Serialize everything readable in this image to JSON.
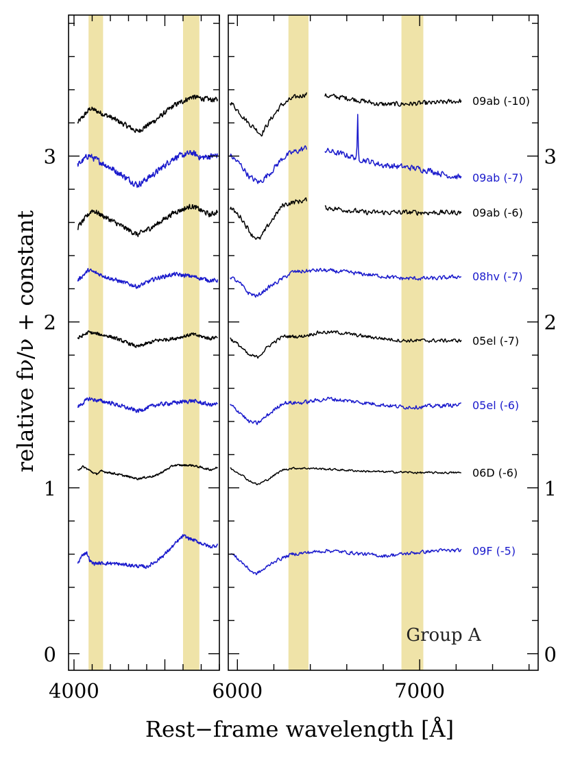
{
  "chart_data": {
    "type": "line",
    "title": "",
    "xlabel": "Rest−frame wavelength [Å]",
    "ylabel": "relative fν/ν + constant",
    "ylim": [
      -0.1,
      3.85
    ],
    "yticks": [
      0,
      1,
      2,
      3
    ],
    "panels": [
      {
        "xlim": [
          3970,
          4800
        ],
        "xticks": [
          4000
        ],
        "bands": [
          [
            4080,
            4160
          ],
          [
            4600,
            4690
          ]
        ]
      },
      {
        "xlim": [
          5950,
          7650
        ],
        "xticks": [
          6000,
          7000
        ],
        "bands": [
          [
            6280,
            6390
          ],
          [
            6900,
            7020
          ]
        ]
      }
    ],
    "annotation": "Group A",
    "colors": {
      "black": "#000000",
      "blue": "#1a1acc",
      "band": "#efe3a8"
    },
    "series": [
      {
        "name": "09ab (-10)",
        "color": "black",
        "offset": 3.2,
        "a": 0.35,
        "b": 0.1,
        "left": [
          [
            4020,
            0.0
          ],
          [
            4090,
            0.25
          ],
          [
            4200,
            0.1
          ],
          [
            4350,
            -0.15
          ],
          [
            4450,
            0.05
          ],
          [
            4550,
            0.3
          ],
          [
            4650,
            0.45
          ],
          [
            4750,
            0.4
          ],
          [
            4790,
            0.4
          ]
        ],
        "right": [
          [
            5960,
            0.37
          ],
          [
            6020,
            0.15
          ],
          [
            6060,
            0.0
          ],
          [
            6100,
            -0.1
          ],
          [
            6130,
            -0.2
          ],
          [
            6180,
            0.05
          ],
          [
            6240,
            0.3
          ],
          [
            6300,
            0.42
          ],
          [
            6380,
            0.5
          ],
          [
            6480,
            0.47
          ],
          [
            6600,
            0.43
          ],
          [
            6700,
            0.37
          ],
          [
            6780,
            0.32
          ],
          [
            6850,
            0.32
          ],
          [
            6950,
            0.33
          ],
          [
            7050,
            0.34
          ],
          [
            7150,
            0.36
          ],
          [
            7230,
            0.38
          ]
        ],
        "gap": [
          6380,
          6480
        ]
      },
      {
        "name": "09ab (-7)",
        "color": "blue",
        "offset": 2.9,
        "a": 0.3,
        "b": 0.12,
        "left": [
          [
            4020,
            0.15
          ],
          [
            4080,
            0.35
          ],
          [
            4200,
            0.1
          ],
          [
            4350,
            -0.25
          ],
          [
            4450,
            0.0
          ],
          [
            4550,
            0.3
          ],
          [
            4650,
            0.4
          ],
          [
            4700,
            0.3
          ],
          [
            4790,
            0.35
          ]
        ],
        "right": [
          [
            5960,
            0.35
          ],
          [
            6020,
            0.15
          ],
          [
            6070,
            -0.1
          ],
          [
            6120,
            -0.2
          ],
          [
            6180,
            0.0
          ],
          [
            6250,
            0.3
          ],
          [
            6300,
            0.4
          ],
          [
            6380,
            0.5
          ],
          [
            6480,
            0.45
          ],
          [
            6600,
            0.35
          ],
          [
            6700,
            0.25
          ],
          [
            6800,
            0.15
          ],
          [
            6950,
            0.1
          ],
          [
            7050,
            0.05
          ],
          [
            7150,
            -0.05
          ],
          [
            7230,
            -0.1
          ]
        ],
        "gap": [
          6380,
          6480
        ],
        "spike": 6660
      },
      {
        "name": "09ab (-6)",
        "color": "black",
        "offset": 2.6,
        "a": 0.3,
        "b": 0.1,
        "left": [
          [
            4020,
            -0.1
          ],
          [
            4100,
            0.25
          ],
          [
            4200,
            0.05
          ],
          [
            4350,
            -0.25
          ],
          [
            4450,
            -0.05
          ],
          [
            4550,
            0.2
          ],
          [
            4650,
            0.33
          ],
          [
            4750,
            0.15
          ],
          [
            4790,
            0.22
          ]
        ],
        "right": [
          [
            5960,
            0.3
          ],
          [
            6020,
            0.1
          ],
          [
            6080,
            -0.25
          ],
          [
            6120,
            -0.35
          ],
          [
            6180,
            0.0
          ],
          [
            6250,
            0.35
          ],
          [
            6300,
            0.4
          ],
          [
            6380,
            0.45
          ],
          [
            6480,
            0.3
          ],
          [
            6600,
            0.25
          ],
          [
            6700,
            0.2
          ],
          [
            6800,
            0.2
          ],
          [
            6950,
            0.2
          ],
          [
            7050,
            0.2
          ],
          [
            7150,
            0.2
          ],
          [
            7230,
            0.2
          ]
        ],
        "gap": [
          6380,
          6480
        ]
      },
      {
        "name": "08hv (-7)",
        "color": "blue",
        "offset": 2.25,
        "a": 0.25,
        "b": 0.08,
        "left": [
          [
            4020,
            0.0
          ],
          [
            4080,
            0.25
          ],
          [
            4200,
            0.05
          ],
          [
            4350,
            -0.15
          ],
          [
            4450,
            0.05
          ],
          [
            4550,
            0.15
          ],
          [
            4650,
            0.1
          ],
          [
            4750,
            0.0
          ],
          [
            4790,
            0.0
          ]
        ],
        "right": [
          [
            5960,
            0.1
          ],
          [
            6020,
            -0.1
          ],
          [
            6060,
            -0.3
          ],
          [
            6110,
            -0.38
          ],
          [
            6160,
            -0.2
          ],
          [
            6250,
            0.05
          ],
          [
            6300,
            0.2
          ],
          [
            6450,
            0.25
          ],
          [
            6600,
            0.2
          ],
          [
            6700,
            0.15
          ],
          [
            6800,
            0.1
          ],
          [
            6900,
            0.05
          ],
          [
            7000,
            0.05
          ],
          [
            7100,
            0.05
          ],
          [
            7230,
            0.1
          ]
        ]
      },
      {
        "name": "05el (-7)",
        "color": "black",
        "offset": 1.9,
        "a": 0.25,
        "b": 0.07,
        "left": [
          [
            4020,
            0.0
          ],
          [
            4080,
            0.15
          ],
          [
            4200,
            0.05
          ],
          [
            4350,
            -0.2
          ],
          [
            4450,
            -0.05
          ],
          [
            4550,
            0.0
          ],
          [
            4650,
            0.1
          ],
          [
            4750,
            0.0
          ],
          [
            4790,
            0.05
          ]
        ],
        "right": [
          [
            5960,
            0.0
          ],
          [
            6020,
            -0.2
          ],
          [
            6060,
            -0.4
          ],
          [
            6110,
            -0.45
          ],
          [
            6180,
            -0.15
          ],
          [
            6250,
            0.05
          ],
          [
            6350,
            0.05
          ],
          [
            6450,
            0.15
          ],
          [
            6550,
            0.15
          ],
          [
            6700,
            0.05
          ],
          [
            6800,
            0.0
          ],
          [
            6900,
            -0.05
          ],
          [
            7000,
            -0.05
          ],
          [
            7100,
            -0.05
          ],
          [
            7230,
            -0.05
          ]
        ]
      },
      {
        "name": "05el (-6)",
        "color": "blue",
        "offset": 1.5,
        "a": 0.25,
        "b": 0.08,
        "left": [
          [
            4020,
            -0.05
          ],
          [
            4080,
            0.15
          ],
          [
            4200,
            0.05
          ],
          [
            4350,
            -0.15
          ],
          [
            4450,
            0.0
          ],
          [
            4550,
            0.05
          ],
          [
            4650,
            0.1
          ],
          [
            4750,
            0.0
          ],
          [
            4790,
            0.02
          ]
        ],
        "right": [
          [
            5960,
            0.0
          ],
          [
            6020,
            -0.2
          ],
          [
            6060,
            -0.4
          ],
          [
            6110,
            -0.45
          ],
          [
            6180,
            -0.2
          ],
          [
            6250,
            0.05
          ],
          [
            6350,
            0.05
          ],
          [
            6500,
            0.15
          ],
          [
            6600,
            0.1
          ],
          [
            6700,
            0.05
          ],
          [
            6800,
            0.0
          ],
          [
            6900,
            -0.05
          ],
          [
            7000,
            -0.05
          ],
          [
            7100,
            -0.02
          ],
          [
            7230,
            0.0
          ]
        ]
      },
      {
        "name": "06D (-6)",
        "color": "black",
        "offset": 1.1,
        "a": 0.18,
        "b": 0.04,
        "left": [
          [
            4020,
            0.05
          ],
          [
            4050,
            0.15
          ],
          [
            4080,
            0.05
          ],
          [
            4120,
            -0.1
          ],
          [
            4150,
            0.0
          ],
          [
            4200,
            -0.05
          ],
          [
            4350,
            -0.25
          ],
          [
            4450,
            -0.15
          ],
          [
            4550,
            0.2
          ],
          [
            4650,
            0.2
          ],
          [
            4750,
            0.05
          ],
          [
            4790,
            0.12
          ]
        ],
        "right": [
          [
            5960,
            0.1
          ],
          [
            6020,
            -0.1
          ],
          [
            6060,
            -0.3
          ],
          [
            6110,
            -0.45
          ],
          [
            6160,
            -0.3
          ],
          [
            6250,
            0.05
          ],
          [
            6300,
            0.1
          ],
          [
            6400,
            0.1
          ],
          [
            6550,
            0.05
          ],
          [
            6700,
            0.0
          ],
          [
            6800,
            -0.02
          ],
          [
            6900,
            -0.03
          ],
          [
            7000,
            -0.05
          ],
          [
            7100,
            -0.05
          ],
          [
            7230,
            -0.05
          ]
        ]
      },
      {
        "name": "09F (-5)",
        "color": "blue",
        "offset": 0.6,
        "a": 0.22,
        "b": 0.07,
        "left": [
          [
            4020,
            -0.25
          ],
          [
            4050,
            0.0
          ],
          [
            4070,
            0.05
          ],
          [
            4085,
            -0.15
          ],
          [
            4100,
            -0.25
          ],
          [
            4200,
            -0.25
          ],
          [
            4300,
            -0.3
          ],
          [
            4400,
            -0.35
          ],
          [
            4450,
            -0.2
          ],
          [
            4500,
            0.0
          ],
          [
            4600,
            0.5
          ],
          [
            4650,
            0.4
          ],
          [
            4750,
            0.2
          ],
          [
            4790,
            0.25
          ]
        ],
        "right": [
          [
            5960,
            0.05
          ],
          [
            6020,
            -0.2
          ],
          [
            6060,
            -0.4
          ],
          [
            6100,
            -0.55
          ],
          [
            6150,
            -0.4
          ],
          [
            6200,
            -0.2
          ],
          [
            6300,
            0.0
          ],
          [
            6400,
            0.05
          ],
          [
            6500,
            0.1
          ],
          [
            6600,
            0.05
          ],
          [
            6700,
            0.0
          ],
          [
            6800,
            -0.05
          ],
          [
            6900,
            0.0
          ],
          [
            7000,
            0.05
          ],
          [
            7100,
            0.1
          ],
          [
            7230,
            0.1
          ]
        ]
      }
    ]
  }
}
